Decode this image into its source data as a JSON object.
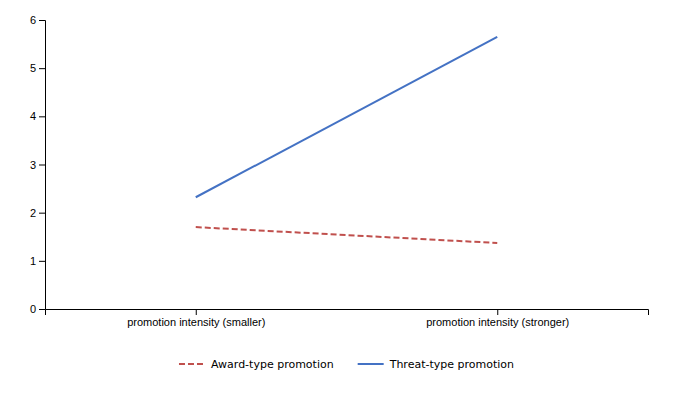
{
  "chart_data": {
    "type": "line",
    "categories": [
      "promotion intensity (smaller)",
      "promotion intensity (stronger)"
    ],
    "series": [
      {
        "name": "Award-type promotion",
        "color": "#c0504d",
        "line_style": "dashed",
        "values": [
          1.7,
          1.37
        ]
      },
      {
        "name": "Threat-type promotion",
        "color": "#4472c4",
        "line_style": "solid",
        "values": [
          2.32,
          5.65
        ]
      }
    ],
    "ylim": [
      0,
      6
    ],
    "yticks": [
      0,
      1,
      2,
      3,
      4,
      5,
      6
    ],
    "grid": false,
    "legend": "bottom"
  }
}
